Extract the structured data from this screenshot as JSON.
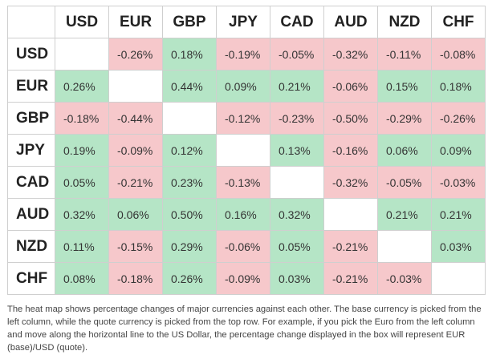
{
  "table": {
    "columns": [
      "USD",
      "EUR",
      "GBP",
      "JPY",
      "CAD",
      "AUD",
      "NZD",
      "CHF"
    ],
    "rows": [
      {
        "label": "USD",
        "cells": [
          null,
          "-0.26%",
          "0.18%",
          "-0.19%",
          "-0.05%",
          "-0.32%",
          "-0.11%",
          "-0.08%"
        ]
      },
      {
        "label": "EUR",
        "cells": [
          "0.26%",
          null,
          "0.44%",
          "0.09%",
          "0.21%",
          "-0.06%",
          "0.15%",
          "0.18%"
        ]
      },
      {
        "label": "GBP",
        "cells": [
          "-0.18%",
          "-0.44%",
          null,
          "-0.12%",
          "-0.23%",
          "-0.50%",
          "-0.29%",
          "-0.26%"
        ]
      },
      {
        "label": "JPY",
        "cells": [
          "0.19%",
          "-0.09%",
          "0.12%",
          null,
          "0.13%",
          "-0.16%",
          "0.06%",
          "0.09%"
        ]
      },
      {
        "label": "CAD",
        "cells": [
          "0.05%",
          "-0.21%",
          "0.23%",
          "-0.13%",
          null,
          "-0.32%",
          "-0.05%",
          "-0.03%"
        ]
      },
      {
        "label": "AUD",
        "cells": [
          "0.32%",
          "0.06%",
          "0.50%",
          "0.16%",
          "0.32%",
          null,
          "0.21%",
          "0.21%"
        ]
      },
      {
        "label": "NZD",
        "cells": [
          "0.11%",
          "-0.15%",
          "0.29%",
          "-0.06%",
          "0.05%",
          "-0.21%",
          null,
          "0.03%"
        ]
      },
      {
        "label": "CHF",
        "cells": [
          "0.08%",
          "-0.18%",
          "0.26%",
          "-0.09%",
          "0.03%",
          "-0.21%",
          "-0.03%",
          null
        ]
      }
    ],
    "positive_color": "#b5e5c6",
    "negative_color": "#f6c8cb"
  },
  "note": "The heat map shows percentage changes of major currencies against each other. The base currency is picked from the left column, while the quote currency is picked from the top row. For example, if you pick the Euro from the left column and move along the horizontal line to the US Dollar, the percentage change displayed in the box will represent EUR (base)/USD (quote)."
}
